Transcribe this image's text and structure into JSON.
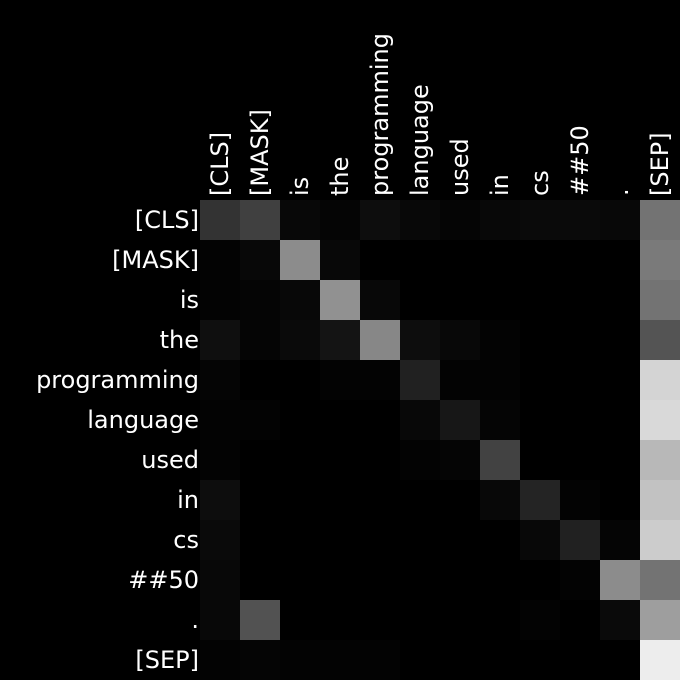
{
  "chart_data": {
    "type": "heatmap",
    "x_labels": [
      "[CLS]",
      "[MASK]",
      "is",
      "the",
      "programming",
      "language",
      "used",
      "in",
      "cs",
      "##50",
      ".",
      "[SEP]"
    ],
    "y_labels": [
      "[CLS]",
      "[MASK]",
      "is",
      "the",
      "programming",
      "language",
      "used",
      "in",
      "cs",
      "##50",
      ".",
      "[SEP]"
    ],
    "colormap": "grayscale (black = 0, white = 1)",
    "value_range": [
      0,
      1
    ],
    "values": [
      [
        0.2,
        0.25,
        0.03,
        0.02,
        0.05,
        0.03,
        0.02,
        0.03,
        0.04,
        0.04,
        0.03,
        0.45
      ],
      [
        0.01,
        0.03,
        0.55,
        0.03,
        0.0,
        0.0,
        0.0,
        0.0,
        0.0,
        0.0,
        0.0,
        0.48
      ],
      [
        0.01,
        0.02,
        0.03,
        0.57,
        0.03,
        0.0,
        0.0,
        0.0,
        0.0,
        0.0,
        0.0,
        0.45
      ],
      [
        0.06,
        0.02,
        0.04,
        0.08,
        0.53,
        0.05,
        0.03,
        0.01,
        0.0,
        0.0,
        0.0,
        0.33
      ],
      [
        0.02,
        0.0,
        0.0,
        0.01,
        0.01,
        0.13,
        0.01,
        0.01,
        0.0,
        0.0,
        0.0,
        0.83
      ],
      [
        0.01,
        0.01,
        0.0,
        0.0,
        0.0,
        0.03,
        0.09,
        0.02,
        0.0,
        0.0,
        0.0,
        0.85
      ],
      [
        0.01,
        0.0,
        0.0,
        0.0,
        0.0,
        0.01,
        0.02,
        0.26,
        0.0,
        0.0,
        0.0,
        0.72
      ],
      [
        0.05,
        0.0,
        0.0,
        0.0,
        0.0,
        0.0,
        0.0,
        0.03,
        0.14,
        0.01,
        0.0,
        0.76
      ],
      [
        0.04,
        0.0,
        0.0,
        0.0,
        0.0,
        0.0,
        0.0,
        0.0,
        0.03,
        0.13,
        0.02,
        0.8
      ],
      [
        0.03,
        0.0,
        0.0,
        0.0,
        0.0,
        0.0,
        0.0,
        0.0,
        0.0,
        0.01,
        0.55,
        0.45
      ],
      [
        0.03,
        0.32,
        0.0,
        0.0,
        0.0,
        0.0,
        0.0,
        0.0,
        0.01,
        0.0,
        0.04,
        0.62
      ],
      [
        0.01,
        0.02,
        0.01,
        0.01,
        0.01,
        0.0,
        0.0,
        0.0,
        0.0,
        0.0,
        0.0,
        0.93
      ]
    ],
    "title": "",
    "xlabel": "",
    "ylabel": "",
    "legend": "none",
    "grid": false
  }
}
